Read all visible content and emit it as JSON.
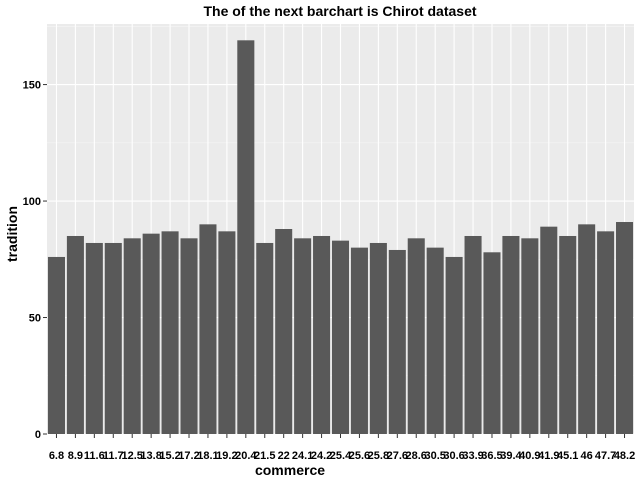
{
  "chart_data": {
    "type": "bar",
    "title": "The of the next barchart is Chirot dataset",
    "xlabel": "commerce",
    "ylabel": "tradition",
    "categories": [
      "6.8",
      "8.9",
      "11.6",
      "11.7",
      "12.5",
      "13.8",
      "15.2",
      "17.2",
      "18.1",
      "19.2",
      "20.4",
      "21.5",
      "22",
      "24.1",
      "24.2",
      "25.4",
      "25.6",
      "25.8",
      "27.6",
      "28.6",
      "30.5",
      "30.6",
      "33.9",
      "36.5",
      "39.4",
      "40.9",
      "41.9",
      "45.1",
      "46",
      "47.7",
      "48.2"
    ],
    "values": [
      76,
      85,
      82,
      82,
      84,
      86,
      87,
      84,
      90,
      87,
      169,
      82,
      88,
      84,
      85,
      83,
      80,
      82,
      79,
      84,
      80,
      76,
      85,
      78,
      85,
      84,
      89,
      85,
      90,
      87,
      91
    ],
    "ylim": [
      0,
      176
    ],
    "yticks": [
      0,
      50,
      100,
      150
    ],
    "grid": true,
    "colors": {
      "bar": "#595959",
      "panel": "#ebebeb",
      "grid_major": "#ffffff",
      "background": "#ffffff"
    }
  }
}
